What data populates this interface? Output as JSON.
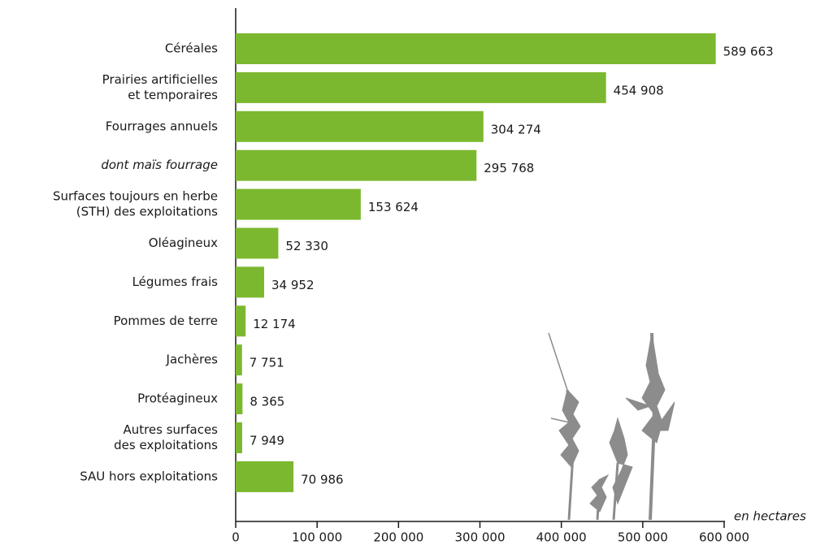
{
  "chart_data": {
    "type": "hbar",
    "categories": [
      [
        "Céréales"
      ],
      [
        "Prairies artificielles",
        "et temporaires"
      ],
      [
        "Fourrages annuels"
      ],
      [
        "dont maïs fourrage"
      ],
      [
        "Surfaces toujours en herbe",
        "(STH) des exploitations"
      ],
      [
        "Oléagineux"
      ],
      [
        "Légumes frais"
      ],
      [
        "Pommes de terre"
      ],
      [
        "Jachères"
      ],
      [
        "Protéagineux"
      ],
      [
        "Autres surfaces",
        "des exploitations"
      ],
      [
        "SAU hors exploitations"
      ]
    ],
    "italic_category": 3,
    "values": [
      589663,
      454908,
      304274,
      295768,
      153624,
      52330,
      34952,
      12174,
      7751,
      8365,
      7949,
      70986
    ],
    "value_labels": [
      "589 663",
      "454 908",
      "304 274",
      "295 768",
      "153 624",
      "52 330",
      "34 952",
      "12 174",
      "7 751",
      "8 365",
      "7 949",
      "70 986"
    ],
    "color": "#7cb82f",
    "xlim": [
      0,
      600000
    ],
    "xticks": [
      0,
      {
        "value": 100000,
        "label": "100 000"
      },
      {
        "value": 200000,
        "label": "200 000"
      },
      {
        "value": 300000,
        "label": "300 000"
      },
      {
        "value": 400000,
        "label": "400 000"
      },
      {
        "value": 500000,
        "label": "500 000"
      },
      {
        "value": 600000,
        "label": "600 000"
      }
    ],
    "xlabel": "en hectares",
    "grid": false
  }
}
